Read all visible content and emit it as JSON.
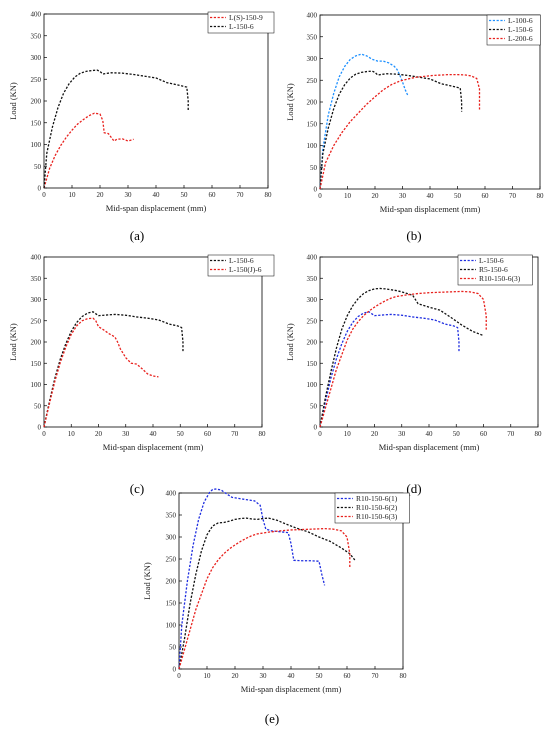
{
  "chart_data": [
    {
      "type": "line",
      "panel_label": "(a)",
      "xlabel": "Mid-span displacement (mm)",
      "ylabel": "Load (KN)",
      "xlim": [
        0,
        80
      ],
      "ylim": [
        0,
        400
      ],
      "xticks": [
        0,
        10,
        20,
        30,
        40,
        50,
        60,
        70,
        80
      ],
      "yticks": [
        0,
        50,
        100,
        150,
        200,
        250,
        300,
        350,
        400
      ],
      "legend_position": "top-right",
      "series": [
        {
          "name": "L(S)-150-9",
          "color": "#e8211d",
          "x": [
            0,
            2,
            4,
            6,
            8,
            10,
            12,
            14,
            16,
            18,
            20,
            21,
            21.5,
            23,
            25,
            26,
            28,
            30,
            32
          ],
          "y": [
            0,
            45,
            75,
            98,
            117,
            133,
            147,
            157,
            166,
            172,
            170,
            155,
            127,
            125,
            108,
            112,
            113,
            108,
            112
          ]
        },
        {
          "name": "L-150-6",
          "color": "#111111",
          "x": [
            0,
            1,
            3,
            5,
            7,
            9,
            11,
            13,
            15,
            17,
            19,
            20,
            21,
            24,
            28,
            32,
            36,
            40,
            44,
            47,
            49,
            51,
            51.5,
            51.5
          ],
          "y": [
            0,
            80,
            140,
            185,
            218,
            240,
            255,
            264,
            268,
            270,
            271,
            268,
            262,
            265,
            264,
            261,
            257,
            253,
            242,
            238,
            235,
            232,
            200,
            178
          ]
        }
      ]
    },
    {
      "type": "line",
      "panel_label": "(b)",
      "xlabel": "Mid-span displacement (mm)",
      "ylabel": "Load (KN)",
      "xlim": [
        0,
        80
      ],
      "ylim": [
        0,
        400
      ],
      "xticks": [
        0,
        10,
        20,
        30,
        40,
        50,
        60,
        70,
        80
      ],
      "yticks": [
        0,
        50,
        100,
        150,
        200,
        250,
        300,
        350,
        400
      ],
      "legend_position": "top-right",
      "series": [
        {
          "name": "L-100-6",
          "color": "#1e90ff",
          "x": [
            0,
            1,
            3,
            5,
            7,
            9,
            11,
            13,
            15,
            17,
            19,
            21,
            23,
            25,
            27,
            28,
            29,
            30,
            31,
            32
          ],
          "y": [
            0,
            90,
            170,
            220,
            258,
            282,
            298,
            306,
            310,
            306,
            298,
            294,
            294,
            290,
            282,
            275,
            262,
            246,
            228,
            214
          ]
        },
        {
          "name": "L-150-6",
          "color": "#111111",
          "x": [
            0,
            1,
            3,
            5,
            7,
            9,
            11,
            13,
            15,
            17,
            19,
            20,
            21,
            24,
            28,
            32,
            36,
            40,
            44,
            47,
            49,
            51,
            51.5,
            51.5
          ],
          "y": [
            0,
            80,
            140,
            185,
            218,
            240,
            255,
            264,
            268,
            270,
            271,
            268,
            262,
            265,
            264,
            261,
            257,
            253,
            242,
            238,
            235,
            232,
            200,
            178
          ]
        },
        {
          "name": "L-200-6",
          "color": "#e8211d",
          "x": [
            0,
            2,
            5,
            8,
            11,
            14,
            17,
            20,
            23,
            26,
            29,
            32,
            35,
            38,
            41,
            44,
            47,
            50,
            53,
            55,
            57,
            58,
            58,
            58
          ],
          "y": [
            0,
            60,
            100,
            130,
            155,
            175,
            195,
            212,
            228,
            240,
            248,
            253,
            257,
            259,
            261,
            262,
            263,
            263,
            262,
            260,
            254,
            230,
            195,
            180
          ]
        }
      ]
    },
    {
      "type": "line",
      "panel_label": "(c)",
      "xlabel": "Mid-span displacement (mm)",
      "ylabel": "Load (KN)",
      "xlim": [
        0,
        80
      ],
      "ylim": [
        0,
        400
      ],
      "xticks": [
        0,
        10,
        20,
        30,
        40,
        50,
        60,
        70,
        80
      ],
      "yticks": [
        0,
        50,
        100,
        150,
        200,
        250,
        300,
        350,
        400
      ],
      "legend_position": "top-right",
      "series": [
        {
          "name": "L-150-6",
          "color": "#111111",
          "x": [
            0,
            2,
            4,
            6,
            8,
            10,
            12,
            14,
            16,
            18,
            20,
            22,
            26,
            30,
            34,
            38,
            42,
            46,
            49,
            50.5,
            51,
            51
          ],
          "y": [
            0,
            60,
            115,
            160,
            196,
            225,
            246,
            260,
            268,
            271,
            262,
            263,
            265,
            263,
            259,
            256,
            252,
            242,
            238,
            234,
            200,
            178
          ]
        },
        {
          "name": "L-150(J)-6",
          "color": "#e8211d",
          "x": [
            0,
            2,
            4,
            6,
            8,
            10,
            12,
            14,
            16,
            18,
            19,
            20,
            22,
            24,
            26,
            27,
            28,
            30,
            32,
            34,
            36,
            38,
            40,
            42
          ],
          "y": [
            0,
            55,
            108,
            152,
            188,
            218,
            238,
            250,
            255,
            256,
            250,
            236,
            228,
            219,
            212,
            200,
            184,
            163,
            150,
            148,
            137,
            125,
            120,
            118
          ]
        }
      ]
    },
    {
      "type": "line",
      "panel_label": "(d)",
      "xlabel": "Mid-span displacement (mm)",
      "ylabel": "Load (KN)",
      "xlim": [
        0,
        80
      ],
      "ylim": [
        0,
        400
      ],
      "xticks": [
        0,
        10,
        20,
        30,
        40,
        50,
        60,
        70,
        80
      ],
      "yticks": [
        0,
        50,
        100,
        150,
        200,
        250,
        300,
        350,
        400
      ],
      "legend_position": "top-right",
      "series": [
        {
          "name": "L-150-6",
          "color": "#1f2ee0",
          "x": [
            0,
            2,
            4,
            6,
            8,
            10,
            12,
            14,
            16,
            18,
            20,
            22,
            26,
            30,
            34,
            38,
            42,
            46,
            49,
            50.5,
            51,
            51
          ],
          "y": [
            0,
            60,
            115,
            160,
            196,
            225,
            246,
            260,
            268,
            271,
            262,
            263,
            265,
            263,
            259,
            256,
            252,
            242,
            238,
            234,
            200,
            178
          ]
        },
        {
          "name": "R5-150-6",
          "color": "#111111",
          "x": [
            0,
            2,
            4,
            6,
            8,
            10,
            12,
            14,
            16,
            18,
            20,
            22,
            24,
            26,
            28,
            30,
            32,
            34,
            36,
            40,
            44,
            48,
            52,
            56,
            60
          ],
          "y": [
            0,
            70,
            130,
            185,
            230,
            262,
            285,
            302,
            314,
            321,
            325,
            326,
            325,
            323,
            321,
            318,
            314,
            310,
            290,
            282,
            275,
            258,
            240,
            225,
            215
          ]
        },
        {
          "name": "R10-150-6(3)",
          "color": "#e8211d",
          "x": [
            0,
            2,
            4,
            6,
            8,
            10,
            12,
            14,
            16,
            18,
            20,
            22,
            24,
            26,
            28,
            32,
            36,
            40,
            44,
            48,
            52,
            55,
            58,
            60,
            61,
            61
          ],
          "y": [
            0,
            45,
            90,
            135,
            170,
            205,
            230,
            248,
            262,
            273,
            282,
            290,
            297,
            303,
            307,
            311,
            314,
            316,
            317,
            318,
            319,
            318,
            314,
            300,
            262,
            228
          ]
        }
      ]
    },
    {
      "type": "line",
      "panel_label": "(e)",
      "xlabel": "Mid-span displacement (mm)",
      "ylabel": "Load (KN)",
      "xlim": [
        0,
        80
      ],
      "ylim": [
        0,
        400
      ],
      "xticks": [
        0,
        10,
        20,
        30,
        40,
        50,
        60,
        70,
        80
      ],
      "yticks": [
        0,
        50,
        100,
        150,
        200,
        250,
        300,
        350,
        400
      ],
      "legend_position": "top-right",
      "series": [
        {
          "name": "R10-150-6(1)",
          "color": "#1f2ee0",
          "x": [
            0,
            1,
            3,
            5,
            7,
            9,
            11,
            12,
            13,
            15,
            17,
            19,
            21,
            24,
            27,
            29,
            30,
            31,
            33,
            36,
            39,
            40,
            41,
            44,
            47,
            50,
            51,
            52
          ],
          "y": [
            0,
            100,
            200,
            280,
            340,
            380,
            402,
            408,
            409,
            407,
            398,
            390,
            388,
            385,
            382,
            372,
            340,
            318,
            314,
            312,
            310,
            285,
            247,
            246,
            246,
            245,
            215,
            190
          ]
        },
        {
          "name": "R10-150-6(2)",
          "color": "#111111",
          "x": [
            0,
            2,
            4,
            6,
            8,
            10,
            12,
            14,
            16,
            18,
            20,
            22,
            24,
            26,
            28,
            30,
            32,
            35,
            38,
            42,
            46,
            50,
            54,
            58,
            61,
            63
          ],
          "y": [
            0,
            70,
            150,
            215,
            268,
            305,
            325,
            332,
            333,
            336,
            340,
            342,
            343,
            341,
            340,
            342,
            343,
            338,
            330,
            320,
            312,
            300,
            290,
            275,
            262,
            246
          ]
        },
        {
          "name": "R10-150-6(3)",
          "color": "#e8211d",
          "x": [
            0,
            2,
            4,
            6,
            8,
            10,
            12,
            14,
            16,
            18,
            20,
            22,
            24,
            26,
            28,
            32,
            36,
            40,
            44,
            48,
            52,
            55,
            58,
            60,
            61,
            61
          ],
          "y": [
            0,
            45,
            90,
            135,
            170,
            205,
            230,
            248,
            262,
            273,
            282,
            290,
            297,
            303,
            307,
            311,
            314,
            316,
            317,
            318,
            319,
            318,
            314,
            300,
            262,
            228
          ]
        }
      ]
    }
  ]
}
